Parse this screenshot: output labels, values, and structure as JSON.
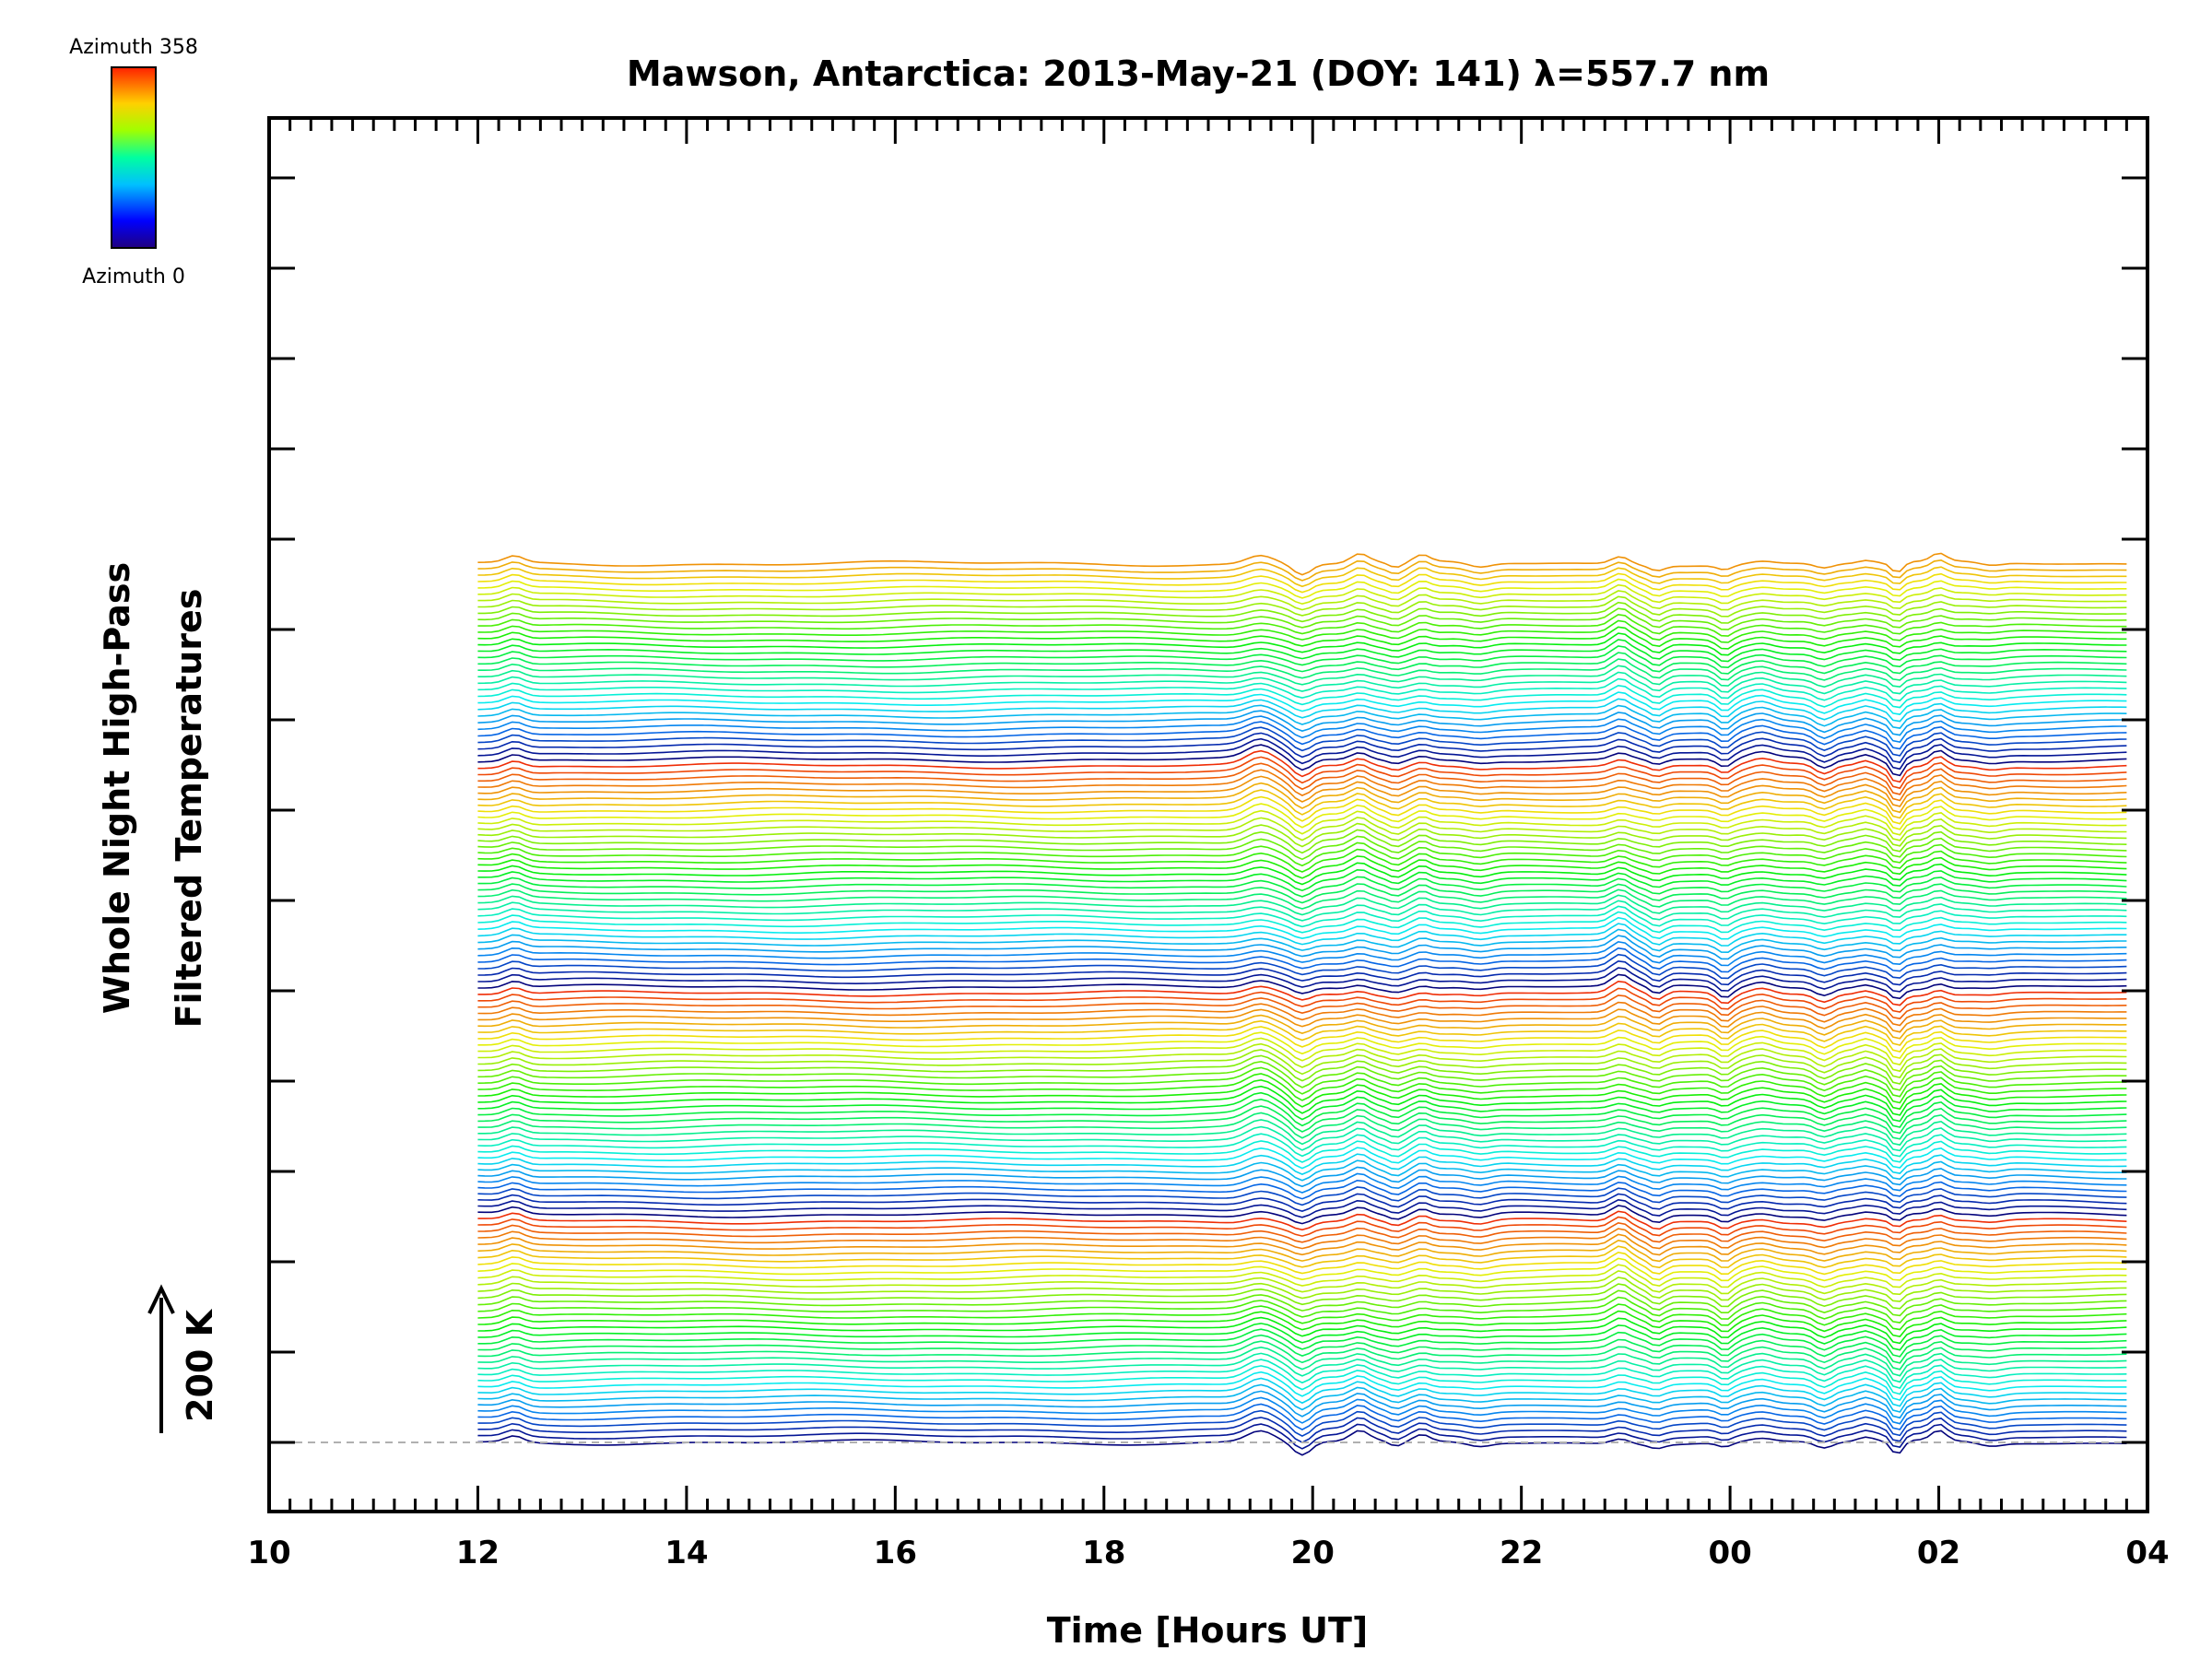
{
  "chart_data": {
    "type": "line",
    "title": "Mawson, Antarctica: 2013-May-21 (DOY: 141) λ=557.7 nm",
    "xlabel": "Time [Hours UT]",
    "ylabel_line1": "Whole Night High-Pass",
    "ylabel_line2": "Filtered Temperatures",
    "scale_label": "200 K",
    "colorbar": {
      "top_label": "Azimuth  358",
      "bottom_label": "Azimuth  0"
    },
    "xlim": [
      10,
      28
    ],
    "x_data_range": [
      12,
      27.8
    ],
    "x_ticks": [
      "10",
      "12",
      "14",
      "16",
      "18",
      "20",
      "22",
      "00",
      "02",
      "04"
    ],
    "n_traces": 140,
    "trace_spacing_K": 14,
    "y_major_tick_step_K": 200,
    "azimuth_range_deg": [
      0,
      358
    ],
    "colors": {
      "low_azimuth": "#1010c0",
      "mid_azimuth": "#30e0e0",
      "high_azimuth": "#ff4000",
      "reference_line": "#b0b0b0"
    }
  }
}
